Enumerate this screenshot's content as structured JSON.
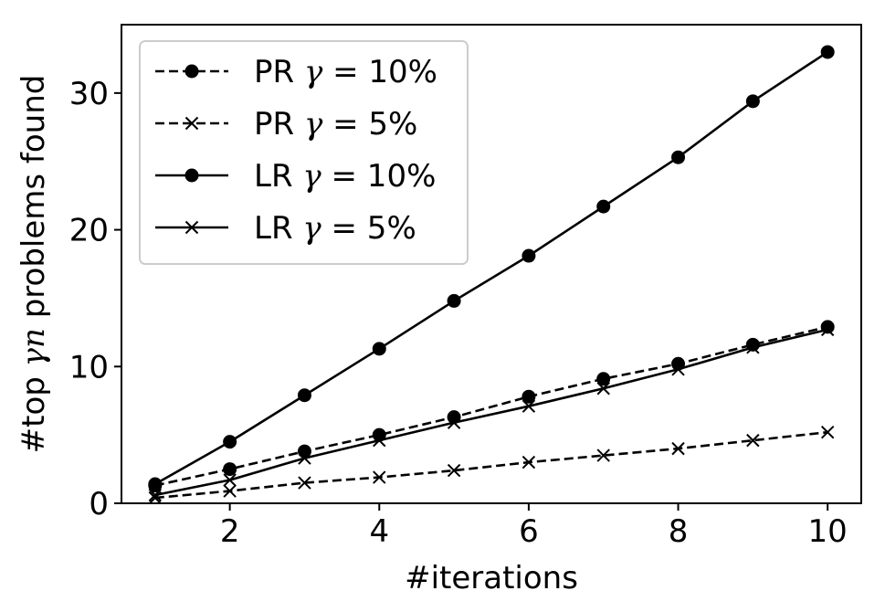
{
  "chart_data": {
    "type": "line",
    "xlabel": "#iterations",
    "ylabel": {
      "prefix": "#top ",
      "math": "γn",
      "suffix": " problems found"
    },
    "xlim": [
      0.55,
      10.45
    ],
    "ylim": [
      0,
      35
    ],
    "x_ticks": [
      2,
      4,
      6,
      8,
      10
    ],
    "y_ticks": [
      0,
      10,
      20,
      30
    ],
    "grid": false,
    "legend_position": "top-left",
    "x": [
      1,
      2,
      3,
      4,
      5,
      6,
      7,
      8,
      9,
      10
    ],
    "series": [
      {
        "name": {
          "prefix": "PR ",
          "math": "γ",
          "suffix": " = 10%"
        },
        "style": "dashed",
        "marker": "circle",
        "values": [
          1.3,
          2.5,
          3.8,
          5.0,
          6.3,
          7.8,
          9.1,
          10.2,
          11.6,
          12.9
        ]
      },
      {
        "name": {
          "prefix": "PR ",
          "math": "γ",
          "suffix": " = 5%"
        },
        "style": "dashed",
        "marker": "x",
        "values": [
          0.4,
          0.9,
          1.5,
          1.9,
          2.4,
          3.0,
          3.5,
          4.0,
          4.6,
          5.2
        ]
      },
      {
        "name": {
          "prefix": "LR ",
          "math": "γ",
          "suffix": " = 10%"
        },
        "style": "solid",
        "marker": "circle",
        "values": [
          1.4,
          4.5,
          7.9,
          11.3,
          14.8,
          18.1,
          21.7,
          25.3,
          29.4,
          33.0
        ]
      },
      {
        "name": {
          "prefix": "LR ",
          "math": "γ",
          "suffix": " = 5%"
        },
        "style": "solid",
        "marker": "x",
        "values": [
          0.6,
          1.7,
          3.3,
          4.6,
          5.9,
          7.1,
          8.4,
          9.8,
          11.4,
          12.7
        ]
      }
    ]
  },
  "colors": {
    "line": "#000000",
    "legend_border": "#cccccc"
  }
}
